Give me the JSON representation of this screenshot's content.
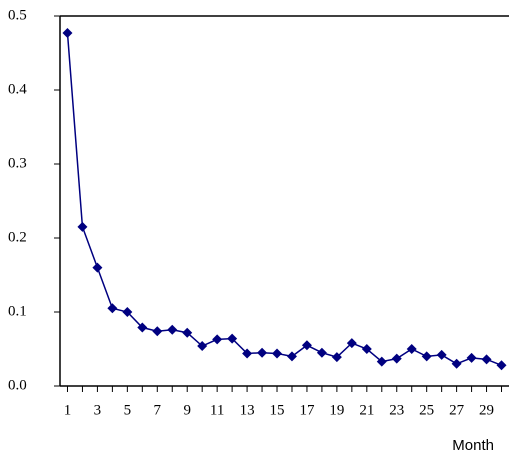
{
  "chart_data": {
    "type": "line",
    "x_label": "Month",
    "categories": [
      "1",
      null,
      "3",
      null,
      "5",
      null,
      "7",
      null,
      "9",
      null,
      "11",
      null,
      "13",
      null,
      "15",
      null,
      "17",
      null,
      "19",
      null,
      "21",
      null,
      "23",
      null,
      "25",
      null,
      "27",
      null,
      "29",
      null
    ],
    "series": [
      {
        "color": "#000080",
        "values": [
          0.477,
          0.215,
          0.16,
          0.105,
          0.1,
          0.079,
          0.074,
          0.076,
          0.072,
          0.054,
          0.063,
          0.064,
          0.044,
          0.045,
          0.044,
          0.04,
          0.055,
          0.045,
          0.039,
          0.058,
          0.05,
          0.033,
          0.037,
          0.05,
          0.04,
          0.042,
          0.03,
          0.038,
          0.036,
          0.028
        ]
      }
    ],
    "ylim": [
      0,
      0.5
    ],
    "yticks": [
      {
        "value": 0,
        "label": "0.0"
      },
      0.1,
      0.2,
      0.3,
      0.4,
      0.5
    ],
    "grid": false
  }
}
